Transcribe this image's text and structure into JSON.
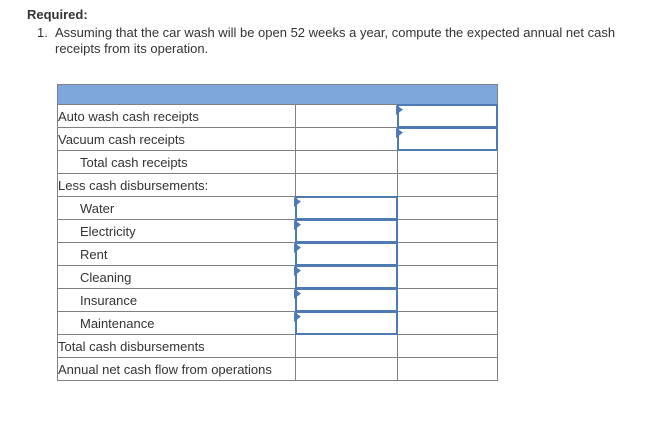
{
  "instructions": {
    "heading": "Required:",
    "item_number": "1.",
    "item_text": "Assuming that the car wash will be open 52 weeks a year, compute the expected annual net cash receipts from its operation."
  },
  "worksheet": {
    "header_label": "",
    "rows": [
      {
        "id": "auto-wash-cash-receipts",
        "label": "Auto wash cash receipts",
        "indent": false,
        "input": "total",
        "rules": {}
      },
      {
        "id": "vacuum-cash-receipts",
        "label": "Vacuum cash receipts",
        "indent": false,
        "input": "total",
        "rules": {}
      },
      {
        "id": "total-cash-receipts",
        "label": "Total cash receipts",
        "indent": true,
        "input": null,
        "rules": {
          "total_top": true
        }
      },
      {
        "id": "less-cash-disbursements",
        "label": "Less cash disbursements:",
        "indent": false,
        "input": null,
        "rules": {}
      },
      {
        "id": "water",
        "label": "Water",
        "indent": true,
        "input": "amount",
        "rules": {}
      },
      {
        "id": "electricity",
        "label": "Electricity",
        "indent": true,
        "input": "amount",
        "rules": {}
      },
      {
        "id": "rent",
        "label": "Rent",
        "indent": true,
        "input": "amount",
        "rules": {}
      },
      {
        "id": "cleaning",
        "label": "Cleaning",
        "indent": true,
        "input": "amount",
        "rules": {}
      },
      {
        "id": "insurance",
        "label": "Insurance",
        "indent": true,
        "input": "amount",
        "rules": {}
      },
      {
        "id": "maintenance",
        "label": "Maintenance",
        "indent": true,
        "input": "amount",
        "rules": {}
      },
      {
        "id": "total-cash-disbursements",
        "label": "Total cash disbursements",
        "indent": false,
        "input": null,
        "rules": {
          "amount_top": true
        }
      },
      {
        "id": "annual-net-cash-flow",
        "label": "Annual net cash flow from operations",
        "indent": false,
        "input": null,
        "rules": {
          "total_top": true,
          "total_double_bottom": true
        }
      }
    ],
    "input_state": {
      "value": "",
      "placeholder": ""
    }
  },
  "icons": {
    "cell_marker": "triangle-right"
  },
  "colors": {
    "header_fill": "#7EA8DC",
    "input_border": "#4E7AB5",
    "grid_line": "#808080",
    "rule_line": "#000000",
    "text": "#333333"
  }
}
